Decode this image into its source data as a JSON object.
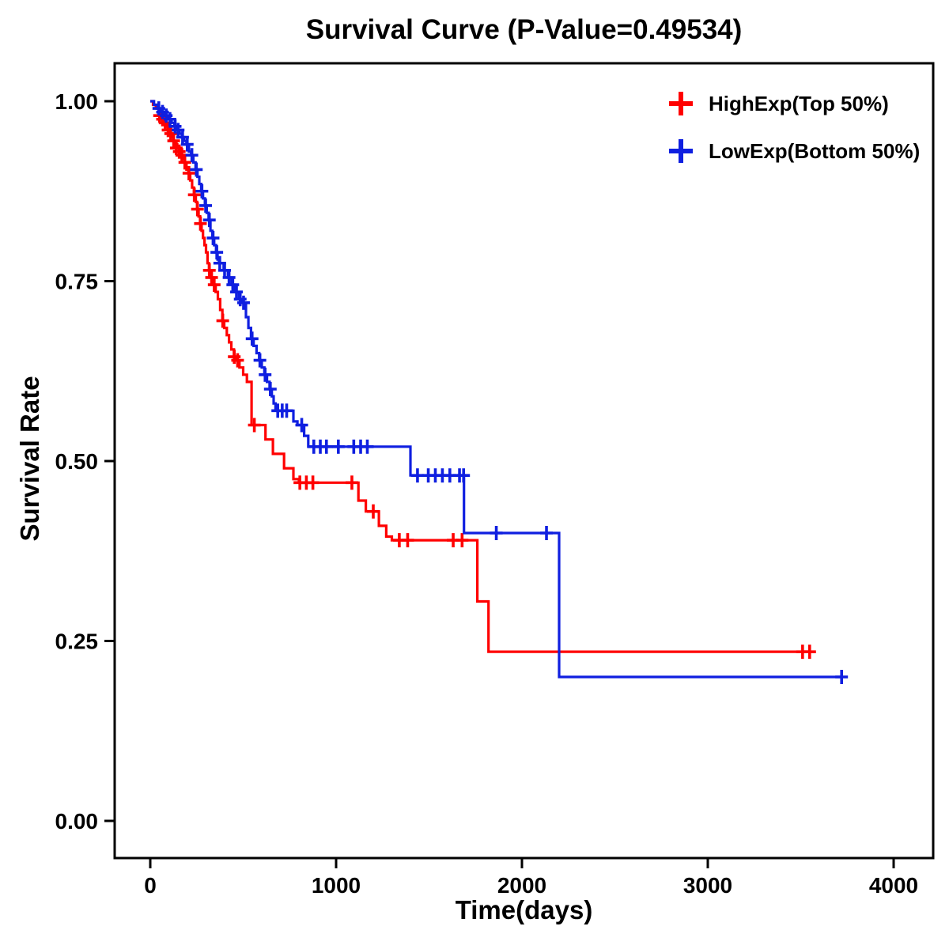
{
  "chart_data": {
    "type": "line",
    "variant": "kaplan-meier-step",
    "title": "Survival Curve (P-Value=0.49534)",
    "xlabel": "Time(days)",
    "ylabel": "Survival Rate",
    "xlim": [
      0,
      4000
    ],
    "ylim": [
      0,
      1
    ],
    "xticks": [
      0,
      1000,
      2000,
      3000,
      4000
    ],
    "xtick_labels": [
      "0",
      "1000",
      "2000",
      "3000",
      "4000"
    ],
    "yticks": [
      0,
      0.25,
      0.5,
      0.75,
      1
    ],
    "ytick_labels": [
      "0.00",
      "0.25",
      "0.50",
      "0.75",
      "1.00"
    ],
    "grid": false,
    "legend_position": "top-right",
    "axis_color": "#000000",
    "series": [
      {
        "name": "HighExp(Top 50%)",
        "color": "#FF0000",
        "steps": [
          [
            0,
            1.0
          ],
          [
            15,
            0.995
          ],
          [
            30,
            0.99
          ],
          [
            45,
            0.985
          ],
          [
            55,
            0.98
          ],
          [
            65,
            0.975
          ],
          [
            75,
            0.97
          ],
          [
            85,
            0.965
          ],
          [
            95,
            0.96
          ],
          [
            105,
            0.955
          ],
          [
            115,
            0.95
          ],
          [
            125,
            0.945
          ],
          [
            135,
            0.94
          ],
          [
            145,
            0.935
          ],
          [
            155,
            0.93
          ],
          [
            165,
            0.925
          ],
          [
            175,
            0.92
          ],
          [
            185,
            0.915
          ],
          [
            195,
            0.905
          ],
          [
            205,
            0.9
          ],
          [
            215,
            0.89
          ],
          [
            225,
            0.88
          ],
          [
            235,
            0.87
          ],
          [
            245,
            0.86
          ],
          [
            252,
            0.85
          ],
          [
            260,
            0.84
          ],
          [
            268,
            0.83
          ],
          [
            276,
            0.82
          ],
          [
            284,
            0.81
          ],
          [
            292,
            0.8
          ],
          [
            300,
            0.79
          ],
          [
            308,
            0.775
          ],
          [
            316,
            0.765
          ],
          [
            324,
            0.755
          ],
          [
            340,
            0.745
          ],
          [
            352,
            0.735
          ],
          [
            364,
            0.725
          ],
          [
            376,
            0.71
          ],
          [
            388,
            0.695
          ],
          [
            398,
            0.685
          ],
          [
            412,
            0.675
          ],
          [
            424,
            0.665
          ],
          [
            436,
            0.655
          ],
          [
            450,
            0.645
          ],
          [
            465,
            0.64
          ],
          [
            480,
            0.63
          ],
          [
            500,
            0.62
          ],
          [
            520,
            0.61
          ],
          [
            545,
            0.55
          ],
          [
            620,
            0.53
          ],
          [
            660,
            0.51
          ],
          [
            720,
            0.49
          ],
          [
            770,
            0.475
          ],
          [
            800,
            0.47
          ],
          [
            1120,
            0.445
          ],
          [
            1160,
            0.43
          ],
          [
            1230,
            0.41
          ],
          [
            1270,
            0.395
          ],
          [
            1300,
            0.39
          ],
          [
            1760,
            0.305
          ],
          [
            1820,
            0.235
          ],
          [
            3560,
            0.235
          ]
        ],
        "censors": [
          [
            50,
            0.98
          ],
          [
            66,
            0.975
          ],
          [
            80,
            0.97
          ],
          [
            96,
            0.96
          ],
          [
            110,
            0.955
          ],
          [
            126,
            0.945
          ],
          [
            140,
            0.935
          ],
          [
            156,
            0.93
          ],
          [
            170,
            0.925
          ],
          [
            186,
            0.915
          ],
          [
            208,
            0.9
          ],
          [
            237,
            0.87
          ],
          [
            254,
            0.85
          ],
          [
            270,
            0.83
          ],
          [
            318,
            0.765
          ],
          [
            330,
            0.755
          ],
          [
            344,
            0.745
          ],
          [
            390,
            0.695
          ],
          [
            452,
            0.645
          ],
          [
            470,
            0.64
          ],
          [
            560,
            0.55
          ],
          [
            805,
            0.47
          ],
          [
            840,
            0.47
          ],
          [
            875,
            0.47
          ],
          [
            1085,
            0.47
          ],
          [
            1200,
            0.43
          ],
          [
            1340,
            0.39
          ],
          [
            1385,
            0.39
          ],
          [
            1630,
            0.39
          ],
          [
            1678,
            0.39
          ],
          [
            3510,
            0.235
          ],
          [
            3548,
            0.235
          ]
        ]
      },
      {
        "name": "LowExp(Bottom 50%)",
        "color": "#0F1FE0",
        "steps": [
          [
            0,
            1.0
          ],
          [
            20,
            0.995
          ],
          [
            40,
            0.99
          ],
          [
            60,
            0.985
          ],
          [
            80,
            0.98
          ],
          [
            100,
            0.975
          ],
          [
            115,
            0.97
          ],
          [
            130,
            0.965
          ],
          [
            145,
            0.96
          ],
          [
            158,
            0.955
          ],
          [
            170,
            0.95
          ],
          [
            182,
            0.945
          ],
          [
            195,
            0.94
          ],
          [
            208,
            0.93
          ],
          [
            220,
            0.925
          ],
          [
            232,
            0.915
          ],
          [
            244,
            0.905
          ],
          [
            254,
            0.895
          ],
          [
            264,
            0.885
          ],
          [
            274,
            0.875
          ],
          [
            284,
            0.865
          ],
          [
            294,
            0.855
          ],
          [
            304,
            0.845
          ],
          [
            314,
            0.835
          ],
          [
            324,
            0.82
          ],
          [
            334,
            0.81
          ],
          [
            344,
            0.8
          ],
          [
            354,
            0.79
          ],
          [
            362,
            0.78
          ],
          [
            370,
            0.775
          ],
          [
            395,
            0.765
          ],
          [
            418,
            0.755
          ],
          [
            438,
            0.745
          ],
          [
            458,
            0.735
          ],
          [
            478,
            0.725
          ],
          [
            498,
            0.72
          ],
          [
            515,
            0.7
          ],
          [
            528,
            0.685
          ],
          [
            542,
            0.67
          ],
          [
            556,
            0.66
          ],
          [
            572,
            0.65
          ],
          [
            586,
            0.64
          ],
          [
            600,
            0.63
          ],
          [
            614,
            0.62
          ],
          [
            628,
            0.61
          ],
          [
            642,
            0.6
          ],
          [
            654,
            0.59
          ],
          [
            664,
            0.58
          ],
          [
            674,
            0.57
          ],
          [
            770,
            0.555
          ],
          [
            792,
            0.55
          ],
          [
            828,
            0.535
          ],
          [
            850,
            0.52
          ],
          [
            1400,
            0.48
          ],
          [
            1688,
            0.4
          ],
          [
            2200,
            0.2
          ],
          [
            3720,
            0.2
          ]
        ],
        "censors": [
          [
            46,
            0.99
          ],
          [
            66,
            0.985
          ],
          [
            86,
            0.98
          ],
          [
            106,
            0.975
          ],
          [
            134,
            0.965
          ],
          [
            150,
            0.96
          ],
          [
            174,
            0.95
          ],
          [
            199,
            0.94
          ],
          [
            224,
            0.925
          ],
          [
            248,
            0.905
          ],
          [
            278,
            0.875
          ],
          [
            298,
            0.855
          ],
          [
            318,
            0.835
          ],
          [
            338,
            0.81
          ],
          [
            358,
            0.79
          ],
          [
            374,
            0.775
          ],
          [
            400,
            0.765
          ],
          [
            424,
            0.755
          ],
          [
            444,
            0.745
          ],
          [
            464,
            0.735
          ],
          [
            484,
            0.725
          ],
          [
            502,
            0.72
          ],
          [
            548,
            0.67
          ],
          [
            590,
            0.64
          ],
          [
            618,
            0.62
          ],
          [
            646,
            0.6
          ],
          [
            686,
            0.57
          ],
          [
            710,
            0.57
          ],
          [
            734,
            0.57
          ],
          [
            815,
            0.55
          ],
          [
            880,
            0.52
          ],
          [
            915,
            0.52
          ],
          [
            948,
            0.52
          ],
          [
            1012,
            0.52
          ],
          [
            1095,
            0.52
          ],
          [
            1132,
            0.52
          ],
          [
            1168,
            0.52
          ],
          [
            1438,
            0.48
          ],
          [
            1496,
            0.48
          ],
          [
            1534,
            0.48
          ],
          [
            1572,
            0.48
          ],
          [
            1612,
            0.48
          ],
          [
            1664,
            0.48
          ],
          [
            1686,
            0.48
          ],
          [
            1862,
            0.4
          ],
          [
            2132,
            0.4
          ],
          [
            3720,
            0.2
          ]
        ]
      }
    ]
  }
}
